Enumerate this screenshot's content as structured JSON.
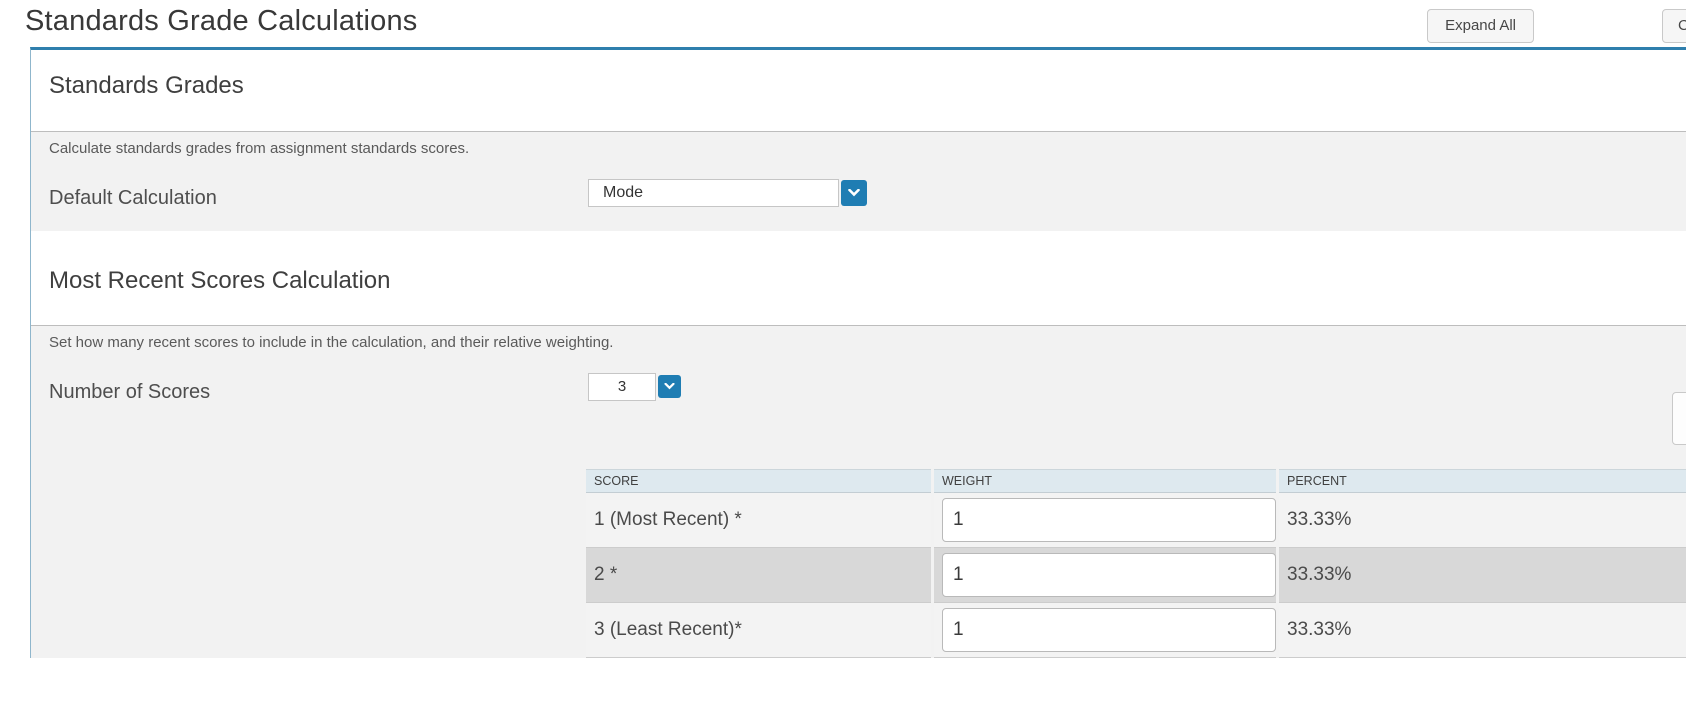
{
  "page": {
    "title": "Standards Grade Calculations",
    "expand_all_label": "Expand All",
    "collapse_partial_label": "C"
  },
  "sections": {
    "standards_grades": {
      "heading": "Standards Grades",
      "description": "Calculate standards grades from assignment standards scores.",
      "default_calculation": {
        "label": "Default Calculation",
        "value": "Mode"
      }
    },
    "most_recent": {
      "heading": "Most Recent Scores Calculation",
      "description": "Set how many recent scores to include in the calculation, and their relative weighting.",
      "number_of_scores": {
        "label": "Number of Scores",
        "value": "3"
      },
      "table": {
        "headers": [
          "SCORE",
          "WEIGHT",
          "PERCENT"
        ],
        "rows": [
          {
            "score": "1 (Most Recent) *",
            "weight": "1",
            "percent": "33.33%"
          },
          {
            "score": "2 *",
            "weight": "1",
            "percent": "33.33%"
          },
          {
            "score": "3 (Least Recent)*",
            "weight": "1",
            "percent": "33.33%"
          }
        ]
      }
    }
  },
  "colors": {
    "accent_blue": "#1f7db3",
    "panel_border_top": "#2f7fad",
    "table_header_bg": "#dee9ef",
    "row_alt_bg": "#d8d8d8",
    "section_bg": "#f2f2f2"
  }
}
